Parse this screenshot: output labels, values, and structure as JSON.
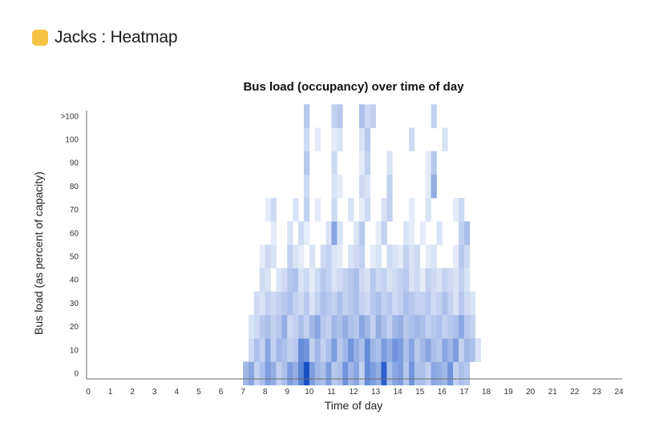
{
  "header": {
    "title": "Jacks : Heatmap",
    "icon": "dashboard-square-icon",
    "icon_color": "#f5c443"
  },
  "chart_data": {
    "type": "heatmap",
    "title": "Bus load (occupancy) over time of day",
    "xlabel": "Time of day",
    "ylabel": "Bus load (as percent of capacity)",
    "x_ticks": [
      "0",
      "1",
      "2",
      "3",
      "4",
      "5",
      "6",
      "7",
      "8",
      "9",
      "10",
      "11",
      "12",
      "13",
      "14",
      "15",
      "16",
      "17",
      "18",
      "19",
      "20",
      "21",
      "22",
      "23",
      "24"
    ],
    "y_ticks": [
      "0",
      "10",
      "20",
      "30",
      "40",
      "50",
      "60",
      "70",
      "80",
      "90",
      "100",
      ">100"
    ],
    "x_range": [
      0,
      24
    ],
    "x_bin_hours": 0.25,
    "active_hours": [
      7,
      17.75
    ],
    "color_scale": {
      "low": "#ffffff",
      "high": "#0a46c2"
    },
    "grid": false,
    "rows": [
      {
        "load": "0",
        "values": [
          0.35,
          0.45,
          0.2,
          0.3,
          0.5,
          0.4,
          0.2,
          0.3,
          0.5,
          0.4,
          0.65,
          0.95,
          0.5,
          0.35,
          0.3,
          0.5,
          0.25,
          0.3,
          0.55,
          0.35,
          0.45,
          0.2,
          0.6,
          0.5,
          0.4,
          0.85,
          0.3,
          0.45,
          0.5,
          0.25,
          0.55,
          0.3,
          0.3,
          0.2,
          0.45,
          0.4,
          0.35,
          0.55,
          0.2,
          0.3,
          0.25,
          0.0,
          0.0
        ]
      },
      {
        "load": "10",
        "values": [
          0.0,
          0.15,
          0.3,
          0.2,
          0.45,
          0.2,
          0.35,
          0.3,
          0.2,
          0.25,
          0.6,
          0.55,
          0.2,
          0.35,
          0.2,
          0.3,
          0.5,
          0.25,
          0.35,
          0.55,
          0.4,
          0.3,
          0.6,
          0.35,
          0.3,
          0.5,
          0.4,
          0.55,
          0.5,
          0.3,
          0.45,
          0.25,
          0.35,
          0.45,
          0.3,
          0.25,
          0.45,
          0.35,
          0.5,
          0.2,
          0.35,
          0.3,
          0.1
        ]
      },
      {
        "load": "20",
        "values": [
          0.0,
          0.1,
          0.15,
          0.25,
          0.3,
          0.2,
          0.25,
          0.4,
          0.15,
          0.2,
          0.3,
          0.2,
          0.35,
          0.45,
          0.25,
          0.2,
          0.35,
          0.3,
          0.4,
          0.3,
          0.25,
          0.45,
          0.35,
          0.2,
          0.4,
          0.3,
          0.2,
          0.35,
          0.4,
          0.25,
          0.3,
          0.35,
          0.3,
          0.2,
          0.25,
          0.3,
          0.2,
          0.25,
          0.3,
          0.45,
          0.25,
          0.2,
          0.0
        ]
      },
      {
        "load": "30",
        "values": [
          0.0,
          0.0,
          0.15,
          0.1,
          0.2,
          0.15,
          0.2,
          0.25,
          0.3,
          0.2,
          0.15,
          0.25,
          0.1,
          0.2,
          0.3,
          0.25,
          0.2,
          0.3,
          0.2,
          0.25,
          0.3,
          0.2,
          0.15,
          0.25,
          0.3,
          0.2,
          0.25,
          0.15,
          0.2,
          0.3,
          0.25,
          0.2,
          0.2,
          0.25,
          0.15,
          0.2,
          0.3,
          0.2,
          0.1,
          0.25,
          0.15,
          0.1,
          0.0
        ]
      },
      {
        "load": "40",
        "values": [
          0.0,
          0.0,
          0.0,
          0.15,
          0.1,
          0.0,
          0.1,
          0.15,
          0.25,
          0.3,
          0.1,
          0.15,
          0.05,
          0.15,
          0.25,
          0.2,
          0.1,
          0.15,
          0.2,
          0.25,
          0.3,
          0.15,
          0.1,
          0.25,
          0.15,
          0.2,
          0.1,
          0.15,
          0.2,
          0.25,
          0.1,
          0.15,
          0.05,
          0.2,
          0.15,
          0.1,
          0.2,
          0.15,
          0.1,
          0.2,
          0.1,
          0.0,
          0.0
        ]
      },
      {
        "load": "50",
        "values": [
          0.0,
          0.0,
          0.0,
          0.05,
          0.15,
          0.1,
          0.0,
          0.0,
          0.2,
          0.1,
          0.05,
          0.0,
          0.1,
          0.0,
          0.15,
          0.2,
          0.1,
          0.05,
          0.0,
          0.1,
          0.15,
          0.2,
          0.0,
          0.05,
          0.1,
          0.0,
          0.15,
          0.1,
          0.05,
          0.2,
          0.1,
          0.15,
          0.0,
          0.05,
          0.1,
          0.0,
          0.0,
          0.0,
          0.05,
          0.25,
          0.15,
          0.0,
          0.0
        ]
      },
      {
        "load": "60",
        "values": [
          0.0,
          0.0,
          0.0,
          0.0,
          0.0,
          0.05,
          0.0,
          0.0,
          0.1,
          0.0,
          0.15,
          0.05,
          0.0,
          0.0,
          0.0,
          0.1,
          0.45,
          0.1,
          0.0,
          0.0,
          0.1,
          0.25,
          0.0,
          0.0,
          0.05,
          0.2,
          0.0,
          0.0,
          0.0,
          0.1,
          0.05,
          0.0,
          0.05,
          0.0,
          0.0,
          0.1,
          0.0,
          0.0,
          0.0,
          0.2,
          0.3,
          0.0,
          0.0
        ]
      },
      {
        "load": "70",
        "values": [
          0.0,
          0.0,
          0.0,
          0.0,
          0.05,
          0.15,
          0.0,
          0.0,
          0.0,
          0.1,
          0.0,
          0.2,
          0.0,
          0.05,
          0.0,
          0.0,
          0.15,
          0.0,
          0.0,
          0.1,
          0.0,
          0.05,
          0.15,
          0.0,
          0.0,
          0.1,
          0.2,
          0.0,
          0.0,
          0.0,
          0.05,
          0.0,
          0.0,
          0.1,
          0.0,
          0.0,
          0.0,
          0.0,
          0.05,
          0.15,
          0.0,
          0.0,
          0.0
        ]
      },
      {
        "load": "80",
        "values": [
          0.0,
          0.0,
          0.0,
          0.0,
          0.0,
          0.0,
          0.0,
          0.0,
          0.0,
          0.0,
          0.0,
          0.15,
          0.0,
          0.0,
          0.0,
          0.0,
          0.1,
          0.05,
          0.0,
          0.0,
          0.0,
          0.15,
          0.1,
          0.0,
          0.0,
          0.0,
          0.2,
          0.0,
          0.0,
          0.0,
          0.0,
          0.0,
          0.0,
          0.05,
          0.4,
          0.0,
          0.0,
          0.0,
          0.0,
          0.0,
          0.0,
          0.0,
          0.0
        ]
      },
      {
        "load": "90",
        "values": [
          0.0,
          0.0,
          0.0,
          0.0,
          0.0,
          0.0,
          0.0,
          0.0,
          0.0,
          0.0,
          0.0,
          0.25,
          0.0,
          0.0,
          0.0,
          0.0,
          0.15,
          0.0,
          0.0,
          0.0,
          0.0,
          0.05,
          0.2,
          0.0,
          0.0,
          0.0,
          0.1,
          0.0,
          0.0,
          0.0,
          0.0,
          0.0,
          0.0,
          0.05,
          0.25,
          0.0,
          0.0,
          0.0,
          0.0,
          0.0,
          0.0,
          0.0,
          0.0
        ]
      },
      {
        "load": "100",
        "values": [
          0.0,
          0.0,
          0.0,
          0.0,
          0.0,
          0.0,
          0.0,
          0.0,
          0.0,
          0.0,
          0.0,
          0.15,
          0.0,
          0.05,
          0.0,
          0.0,
          0.05,
          0.1,
          0.0,
          0.0,
          0.0,
          0.1,
          0.25,
          0.0,
          0.0,
          0.0,
          0.0,
          0.0,
          0.0,
          0.0,
          0.15,
          0.0,
          0.0,
          0.0,
          0.0,
          0.0,
          0.1,
          0.0,
          0.0,
          0.0,
          0.0,
          0.0,
          0.0
        ]
      },
      {
        "load": ">100",
        "values": [
          0.0,
          0.0,
          0.0,
          0.0,
          0.0,
          0.0,
          0.0,
          0.0,
          0.0,
          0.0,
          0.0,
          0.25,
          0.0,
          0.0,
          0.0,
          0.0,
          0.2,
          0.25,
          0.0,
          0.0,
          0.0,
          0.3,
          0.15,
          0.2,
          0.0,
          0.0,
          0.0,
          0.0,
          0.0,
          0.0,
          0.0,
          0.0,
          0.0,
          0.0,
          0.2,
          0.0,
          0.0,
          0.0,
          0.0,
          0.0,
          0.0,
          0.0,
          0.0
        ]
      }
    ]
  }
}
